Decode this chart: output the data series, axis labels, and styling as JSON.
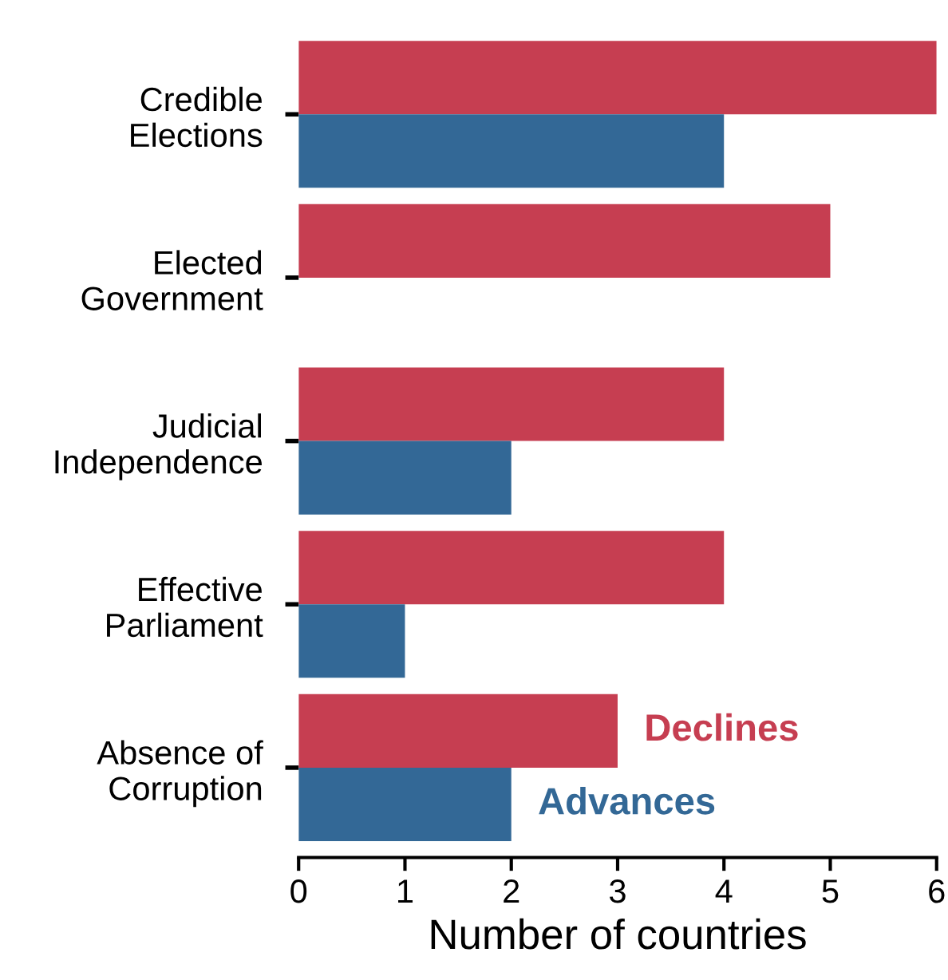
{
  "chart_data": {
    "type": "bar",
    "orientation": "horizontal",
    "xlabel": "Number of countries",
    "categories": [
      "Credible\nElections",
      "Elected\nGovernment",
      "Judicial\nIndependence",
      "Effective\nParliament",
      "Absence of\nCorruption"
    ],
    "series": [
      {
        "name": "Declines",
        "color": "#c63e51",
        "values": [
          6,
          5,
          4,
          4,
          3
        ]
      },
      {
        "name": "Advances",
        "color": "#336896",
        "values": [
          4,
          0,
          2,
          1,
          2
        ]
      }
    ],
    "xlim": [
      0,
      6
    ],
    "xticks": [
      0,
      1,
      2,
      3,
      4,
      5,
      6
    ],
    "grid": false,
    "legend": false
  }
}
